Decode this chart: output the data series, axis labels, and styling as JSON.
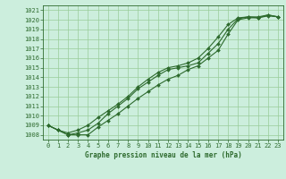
{
  "title": "Graphe pression niveau de la mer (hPa)",
  "bg_color": "#cceedd",
  "grid_color": "#99cc99",
  "line_color": "#2d6a2d",
  "xlim": [
    -0.5,
    23.5
  ],
  "ylim": [
    1007.5,
    1021.5
  ],
  "yticks": [
    1008,
    1009,
    1010,
    1011,
    1012,
    1013,
    1014,
    1015,
    1016,
    1017,
    1018,
    1019,
    1020,
    1021
  ],
  "xticks": [
    0,
    1,
    2,
    3,
    4,
    5,
    6,
    7,
    8,
    9,
    10,
    11,
    12,
    13,
    14,
    15,
    16,
    17,
    18,
    19,
    20,
    21,
    22,
    23
  ],
  "series1": [
    1009.0,
    1008.5,
    1008.0,
    1008.0,
    1008.0,
    1008.8,
    1009.5,
    1010.2,
    1011.0,
    1011.8,
    1012.5,
    1013.2,
    1013.8,
    1014.2,
    1014.8,
    1015.2,
    1016.0,
    1016.8,
    1018.5,
    1020.0,
    1020.2,
    1020.2,
    1020.5,
    1020.3
  ],
  "series2": [
    1009.0,
    1008.5,
    1008.0,
    1008.2,
    1008.5,
    1009.2,
    1010.2,
    1011.0,
    1011.8,
    1012.8,
    1013.5,
    1014.2,
    1014.8,
    1015.0,
    1015.2,
    1015.5,
    1016.5,
    1017.5,
    1019.0,
    1020.1,
    1020.3,
    1020.2,
    1020.4,
    1020.3
  ],
  "series3": [
    1009.0,
    1008.5,
    1008.2,
    1008.5,
    1009.0,
    1009.8,
    1010.5,
    1011.2,
    1012.0,
    1013.0,
    1013.8,
    1014.5,
    1015.0,
    1015.2,
    1015.5,
    1016.0,
    1017.0,
    1018.2,
    1019.5,
    1020.2,
    1020.3,
    1020.3,
    1020.5,
    1020.3
  ],
  "tick_fontsize": 5,
  "label_fontsize": 5.5,
  "linewidth": 0.8,
  "markersize": 2.0
}
